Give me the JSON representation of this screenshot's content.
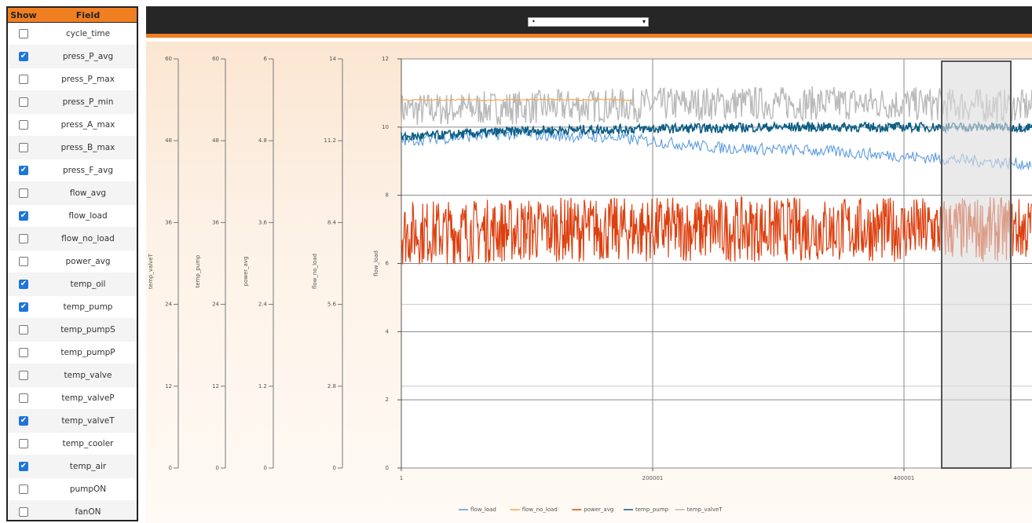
{
  "field_table": {
    "header_show": "Show",
    "header_field": "Field",
    "rows": [
      {
        "field": "cycle_time",
        "checked": false
      },
      {
        "field": "press_P_avg",
        "checked": true
      },
      {
        "field": "press_P_max",
        "checked": false
      },
      {
        "field": "press_P_min",
        "checked": false
      },
      {
        "field": "press_A_max",
        "checked": false
      },
      {
        "field": "press_B_max",
        "checked": false
      },
      {
        "field": "press_F_avg",
        "checked": true
      },
      {
        "field": "flow_avg",
        "checked": false
      },
      {
        "field": "flow_load",
        "checked": true
      },
      {
        "field": "flow_no_load",
        "checked": false
      },
      {
        "field": "power_avg",
        "checked": false
      },
      {
        "field": "temp_oil",
        "checked": true
      },
      {
        "field": "temp_pump",
        "checked": true
      },
      {
        "field": "temp_pumpS",
        "checked": false
      },
      {
        "field": "temp_pumpP",
        "checked": false
      },
      {
        "field": "temp_valve",
        "checked": false
      },
      {
        "field": "temp_valveP",
        "checked": false
      },
      {
        "field": "temp_valveT",
        "checked": true
      },
      {
        "field": "temp_cooler",
        "checked": false
      },
      {
        "field": "temp_air",
        "checked": true
      },
      {
        "field": "pumpON",
        "checked": false
      },
      {
        "field": "fanON",
        "checked": false
      }
    ]
  },
  "toolbar": {
    "dataset_select_value": "",
    "check_mark": "✔",
    "dot_glyph": "•",
    "caret_glyph": "▾"
  },
  "colors": {
    "accent": "#f07f21",
    "topbar": "#262626",
    "flow_load": "#5b9be0",
    "flow_no_load": "#f5a54a",
    "power_avg": "#dd4010",
    "temp_pump": "#0e5f85",
    "temp_valveT": "#b9b9b9",
    "selection_fill": "#dcdcdc"
  },
  "chart_data": {
    "type": "line",
    "x_ticks": [
      "1",
      "200001",
      "400001"
    ],
    "x_range": [
      1,
      500000
    ],
    "main_axis": {
      "label": "flow_load",
      "range": [
        0,
        12
      ],
      "ticks": [
        "0",
        "2",
        "4",
        "6",
        "8",
        "10",
        "12"
      ]
    },
    "secondary_axes": [
      {
        "label": "temp_valveT",
        "ticks": [
          "0",
          "12",
          "24",
          "36",
          "48",
          "60"
        ]
      },
      {
        "label": "temp_pump",
        "ticks": [
          "0",
          "12",
          "24",
          "36",
          "48",
          "60"
        ]
      },
      {
        "label": "power_avg",
        "ticks": [
          "0",
          "1.2",
          "2.4",
          "3.6",
          "4.8",
          "6"
        ]
      },
      {
        "label": "flow_no_load",
        "ticks": [
          "0",
          "2.8",
          "5.6",
          "8.4",
          "11.2",
          "14"
        ]
      }
    ],
    "brush_selection_x": [
      430000,
      485000
    ],
    "series": [
      {
        "name": "flow_load",
        "approx_level": [
          9.6,
          9.8,
          9.7,
          9.4,
          9.3,
          9.1,
          8.9
        ]
      },
      {
        "name": "flow_no_load",
        "approx_level": [
          10.8,
          10.8
        ]
      },
      {
        "name": "power_avg",
        "approx_level": [
          6.9,
          7.0,
          7.0,
          7.0,
          7.0
        ]
      },
      {
        "name": "temp_pump",
        "approx_level": [
          9.7,
          9.9,
          9.95,
          10.0,
          10.0,
          10.0
        ]
      },
      {
        "name": "temp_valveT",
        "approx_level": [
          10.5,
          10.6,
          10.7,
          10.7,
          10.6
        ]
      }
    ],
    "legend": [
      "flow_load",
      "flow_no_load",
      "power_avg",
      "temp_pump",
      "temp_valveT"
    ],
    "legend_position": "bottom",
    "grid": true
  }
}
